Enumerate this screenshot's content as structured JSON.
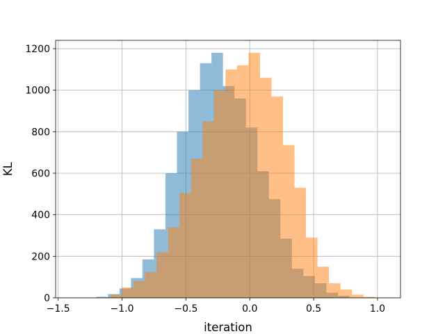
{
  "chart_data": {
    "type": "bar",
    "title": "",
    "xlabel": "iteration",
    "ylabel": "KL",
    "xlim": [
      -1.52,
      1.18
    ],
    "ylim": [
      0,
      1240
    ],
    "grid": true,
    "xticks": [
      -1.5,
      -1.0,
      -0.5,
      0.0,
      0.5,
      1.0
    ],
    "xtick_labels": [
      "−1.5",
      "−1.0",
      "−0.5",
      "0.0",
      "0.5",
      "1.0"
    ],
    "yticks": [
      0,
      200,
      400,
      600,
      800,
      1000,
      1200
    ],
    "ytick_labels": [
      "0",
      "200",
      "400",
      "600",
      "800",
      "1000",
      "1200"
    ],
    "series": [
      {
        "color": "#1f77b4",
        "alpha": 0.5,
        "bins": [
          {
            "x0": -1.2,
            "x1": -1.11,
            "count": 5
          },
          {
            "x0": -1.11,
            "x1": -1.02,
            "count": 18
          },
          {
            "x0": -1.02,
            "x1": -0.93,
            "count": 45
          },
          {
            "x0": -0.93,
            "x1": -0.84,
            "count": 95
          },
          {
            "x0": -0.84,
            "x1": -0.75,
            "count": 185
          },
          {
            "x0": -0.75,
            "x1": -0.66,
            "count": 330
          },
          {
            "x0": -0.66,
            "x1": -0.57,
            "count": 600
          },
          {
            "x0": -0.57,
            "x1": -0.48,
            "count": 800
          },
          {
            "x0": -0.48,
            "x1": -0.39,
            "count": 1000
          },
          {
            "x0": -0.39,
            "x1": -0.3,
            "count": 1130
          },
          {
            "x0": -0.3,
            "x1": -0.21,
            "count": 1180
          },
          {
            "x0": -0.21,
            "x1": -0.12,
            "count": 1020
          },
          {
            "x0": -0.12,
            "x1": -0.03,
            "count": 960
          },
          {
            "x0": -0.03,
            "x1": 0.06,
            "count": 820
          },
          {
            "x0": 0.06,
            "x1": 0.15,
            "count": 610
          },
          {
            "x0": 0.15,
            "x1": 0.24,
            "count": 475
          },
          {
            "x0": 0.24,
            "x1": 0.33,
            "count": 285
          },
          {
            "x0": 0.33,
            "x1": 0.42,
            "count": 140
          },
          {
            "x0": 0.42,
            "x1": 0.51,
            "count": 105
          },
          {
            "x0": 0.51,
            "x1": 0.6,
            "count": 70
          },
          {
            "x0": 0.6,
            "x1": 0.69,
            "count": 25
          },
          {
            "x0": 0.69,
            "x1": 0.78,
            "count": 10
          }
        ]
      },
      {
        "color": "#ff7f0e",
        "alpha": 0.5,
        "bins": [
          {
            "x0": -1.09,
            "x1": -1.0,
            "count": 15
          },
          {
            "x0": -1.0,
            "x1": -0.91,
            "count": 50
          },
          {
            "x0": -0.91,
            "x1": -0.82,
            "count": 80
          },
          {
            "x0": -0.82,
            "x1": -0.73,
            "count": 125
          },
          {
            "x0": -0.73,
            "x1": -0.64,
            "count": 220
          },
          {
            "x0": -0.64,
            "x1": -0.55,
            "count": 340
          },
          {
            "x0": -0.55,
            "x1": -0.46,
            "count": 505
          },
          {
            "x0": -0.46,
            "x1": -0.37,
            "count": 670
          },
          {
            "x0": -0.37,
            "x1": -0.28,
            "count": 850
          },
          {
            "x0": -0.28,
            "x1": -0.19,
            "count": 1000
          },
          {
            "x0": -0.19,
            "x1": -0.1,
            "count": 1100
          },
          {
            "x0": -0.1,
            "x1": -0.01,
            "count": 1120
          },
          {
            "x0": -0.01,
            "x1": 0.08,
            "count": 1180
          },
          {
            "x0": 0.08,
            "x1": 0.17,
            "count": 1060
          },
          {
            "x0": 0.17,
            "x1": 0.26,
            "count": 970
          },
          {
            "x0": 0.26,
            "x1": 0.35,
            "count": 735
          },
          {
            "x0": 0.35,
            "x1": 0.44,
            "count": 530
          },
          {
            "x0": 0.44,
            "x1": 0.53,
            "count": 290
          },
          {
            "x0": 0.53,
            "x1": 0.62,
            "count": 150
          },
          {
            "x0": 0.62,
            "x1": 0.71,
            "count": 70
          },
          {
            "x0": 0.71,
            "x1": 0.8,
            "count": 40
          },
          {
            "x0": 0.8,
            "x1": 0.89,
            "count": 15
          },
          {
            "x0": 0.89,
            "x1": 0.98,
            "count": 5
          }
        ]
      }
    ]
  }
}
